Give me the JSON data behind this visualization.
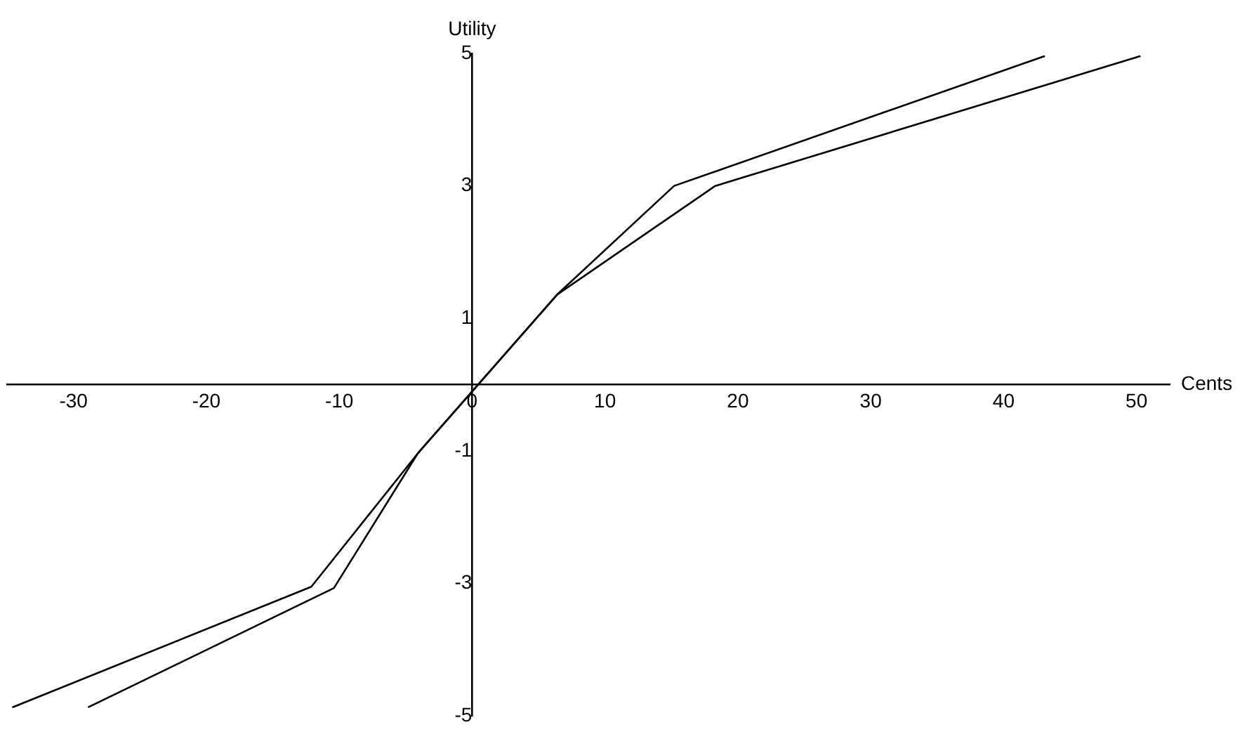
{
  "chart_data": {
    "type": "line",
    "xlabel": "Cents",
    "ylabel": "Utility",
    "xlim": [
      -35,
      52.5
    ],
    "ylim": [
      -5,
      5
    ],
    "xticks": [
      -30,
      -20,
      -10,
      0,
      10,
      20,
      30,
      40,
      50
    ],
    "yticks": [
      -5,
      -3,
      -1,
      1,
      3,
      5
    ],
    "grid": false,
    "legend": false,
    "marker": "none",
    "series": [
      {
        "color": "#000000",
        "x": [
          -34.6,
          -12.1,
          -4.1,
          6.4,
          15.2,
          43.1
        ],
        "values": [
          -4.87,
          -3.05,
          -1.04,
          1.36,
          3.0,
          4.96
        ]
      },
      {
        "color": "#000000",
        "x": [
          -28.9,
          -10.4,
          -4.1,
          6.4,
          18.3,
          50.3
        ],
        "values": [
          -4.87,
          -3.07,
          -1.04,
          1.36,
          3.0,
          4.96
        ]
      }
    ]
  }
}
